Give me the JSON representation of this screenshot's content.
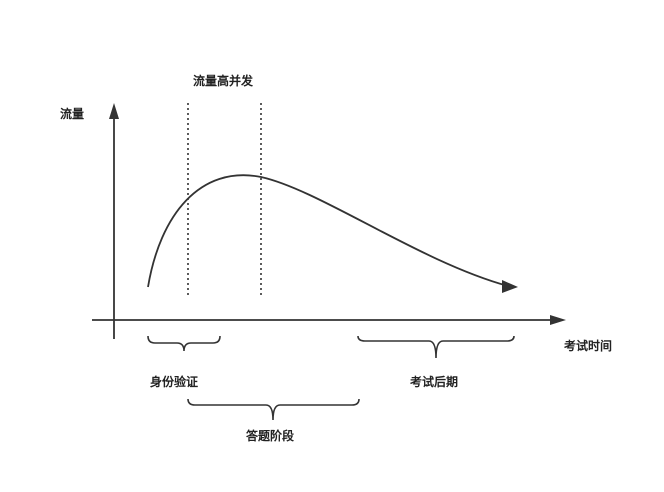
{
  "diagram": {
    "peak_label": "流量高并发",
    "y_axis_label": "流量",
    "x_axis_label": "考试时间",
    "phases": [
      {
        "label": "身份验证"
      },
      {
        "label": "答题阶段"
      },
      {
        "label": "考试后期"
      }
    ]
  },
  "colors": {
    "stroke": "#333333",
    "text": "#222222",
    "background": "#ffffff"
  }
}
